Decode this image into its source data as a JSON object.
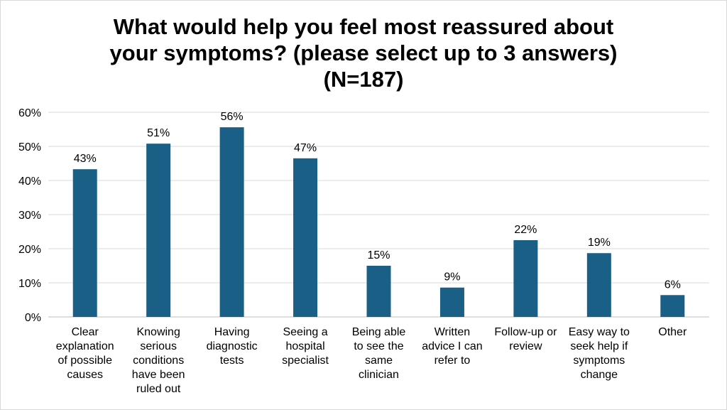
{
  "chart_data": {
    "type": "bar",
    "title_lines": [
      "What would help you feel most reassured about",
      "your symptoms? (please select up to 3 answers)",
      "(N=187)"
    ],
    "categories": [
      "Clear explanation of possible causes",
      "Knowing serious conditions have been ruled out",
      "Having diagnostic tests",
      "Seeing a hospital specialist",
      "Being able to see the same clinician",
      "Written advice I can refer to",
      "Follow-up or review",
      "Easy way to seek help if symptoms change",
      "Other"
    ],
    "category_lines": [
      [
        "Clear",
        "explanation",
        "of possible",
        "causes"
      ],
      [
        "Knowing",
        "serious",
        "conditions",
        "have been",
        "ruled out"
      ],
      [
        "Having",
        "diagnostic",
        "tests"
      ],
      [
        "Seeing a",
        "hospital",
        "specialist"
      ],
      [
        "Being able",
        "to see the",
        "same",
        "clinician"
      ],
      [
        "Written",
        "advice I can",
        "refer to"
      ],
      [
        "Follow-up or",
        "review"
      ],
      [
        "Easy way to",
        "seek help if",
        "symptoms",
        "change"
      ],
      [
        "Other"
      ]
    ],
    "values": [
      43.3,
      50.8,
      55.6,
      46.5,
      15.0,
      8.6,
      22.5,
      18.7,
      6.4
    ],
    "data_labels": [
      "43%",
      "51%",
      "56%",
      "47%",
      "15%",
      "9%",
      "22%",
      "19%",
      "6%"
    ],
    "yticks": [
      "0%",
      "10%",
      "20%",
      "30%",
      "40%",
      "50%",
      "60%"
    ],
    "ylim": [
      0,
      60
    ],
    "ytick_step": 10,
    "unit": "%",
    "grid": true,
    "legend": "none",
    "bar_color": "#1a5f86",
    "grid_color": "#d9d9d9"
  }
}
